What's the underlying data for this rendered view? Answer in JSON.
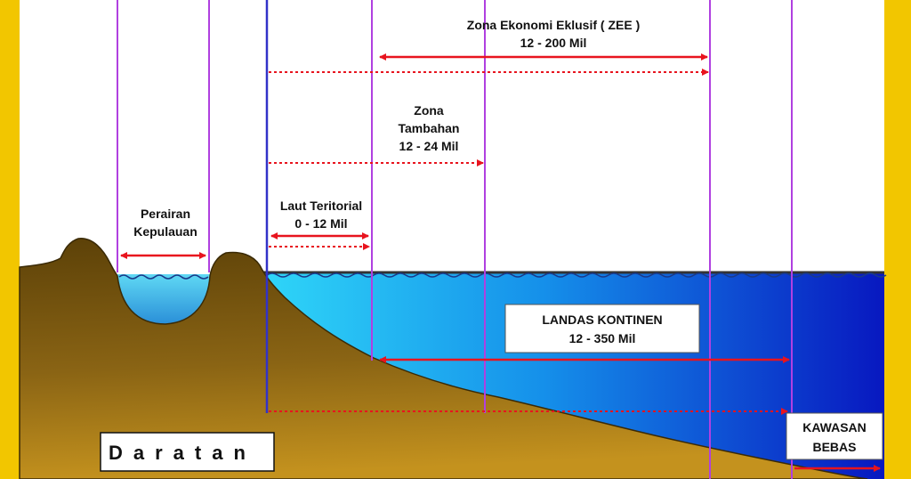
{
  "labels": {
    "zee_title": "Zona Ekonomi Eklusif  ( ZEE )",
    "zee_range": "12 - 200  Mil",
    "tambahan_line1": "Zona",
    "tambahan_line2": "Tambahan",
    "tambahan_range": "12 - 24  Mil",
    "teritorial_title": "Laut Teritorial",
    "teritorial_range": "0 - 12  Mil",
    "perairan_line1": "Perairan",
    "perairan_line2": "Kepulauan",
    "landas_title": "LANDAS  KONTINEN",
    "landas_range": "12 - 350  Mil",
    "kawasan_line1": "KAWASAN",
    "kawasan_line2": "BEBAS",
    "daratan": "Daratan"
  },
  "colors": {
    "land": "#7a5a12",
    "sea_light": "#25c8f2",
    "sea_dark": "#0a1ec8",
    "arrow": "#e8141e",
    "boundary": "#b040e0",
    "baseline": "#3232c8",
    "frame": "#f0c800"
  }
}
